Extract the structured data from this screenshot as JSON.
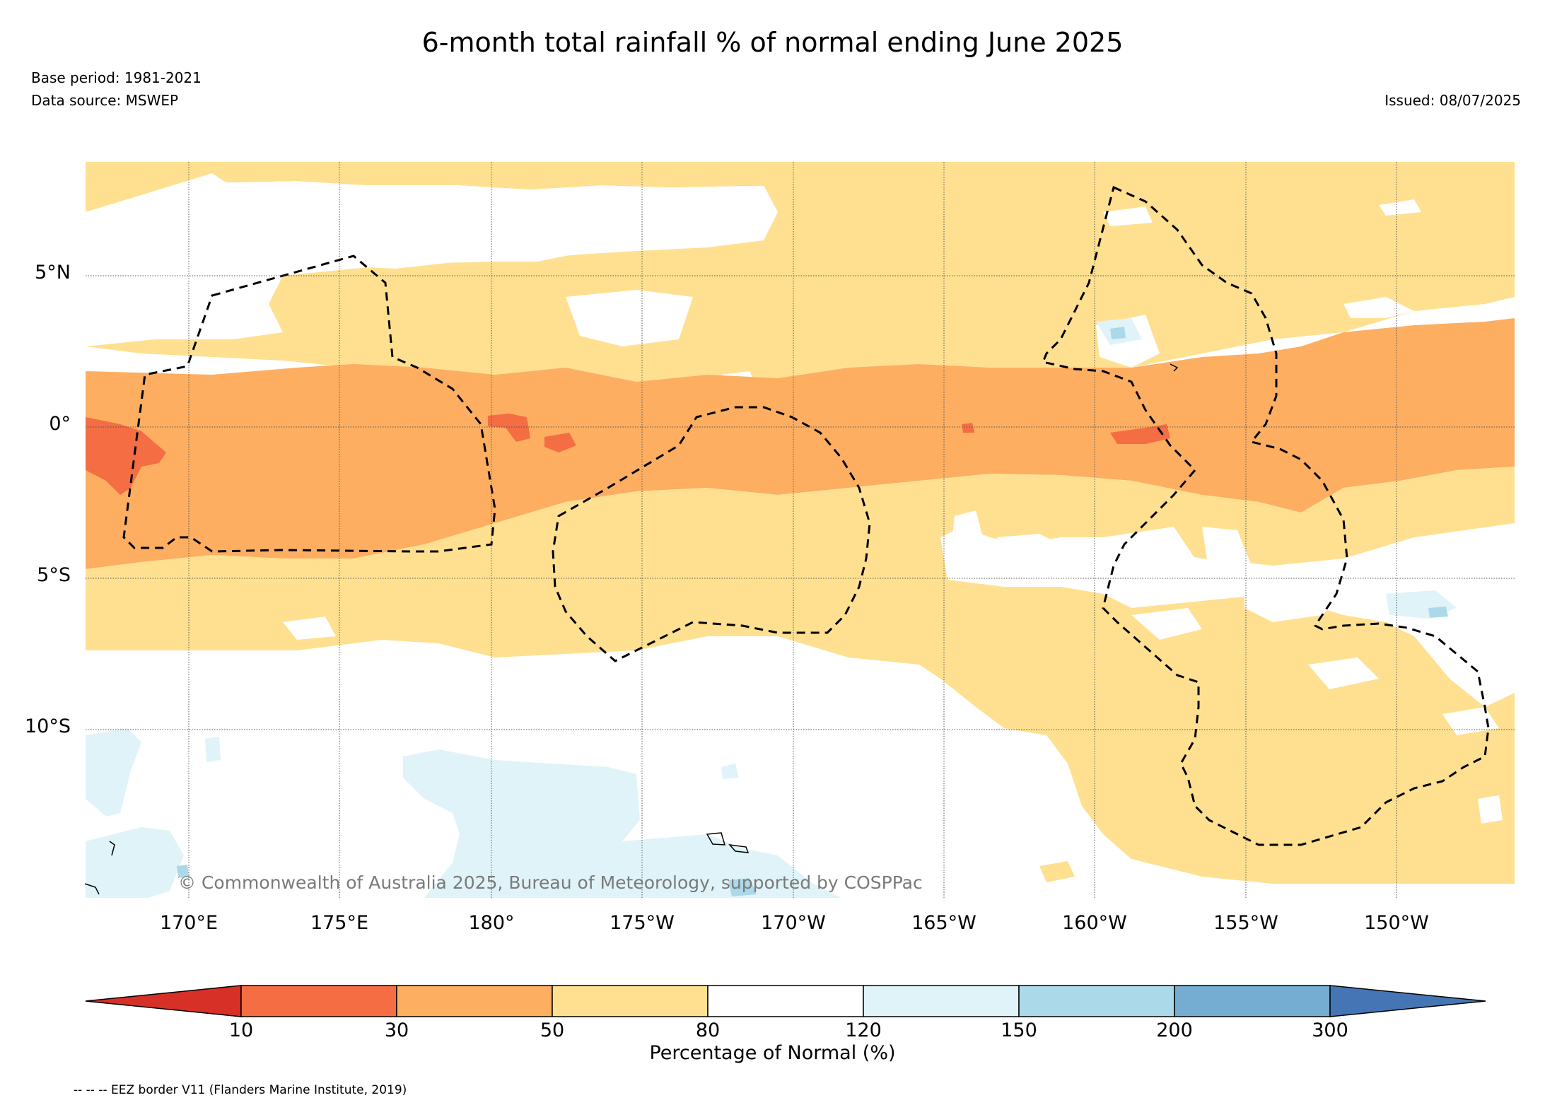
{
  "header": {
    "title": "6-month total rainfall % of normal ending June 2025",
    "base_period": "Base period: 1981-2021",
    "data_source": "Data source: MSWEP",
    "issued": "Issued: 08/07/2025"
  },
  "map": {
    "lat_labels": [
      "5°N",
      "0°",
      "5°S",
      "10°S"
    ],
    "lon_labels": [
      "170°E",
      "175°E",
      "180°",
      "175°W",
      "170°W",
      "165°W",
      "160°W",
      "155°W",
      "150°W"
    ],
    "copyright": "© Commonwealth of Australia 2025, Bureau of Meteorology, supported by COSPPac",
    "colors": {
      "below_10": "#d73027",
      "10_30": "#f46d43",
      "30_50": "#fdae61",
      "50_80": "#fee090",
      "80_120": "#ffffff",
      "120_150": "#e0f3f8",
      "150_200": "#abd9e9",
      "200_300": "#74add1",
      "above_300": "#4575b4"
    }
  },
  "colorbar": {
    "ticks": [
      "10",
      "30",
      "50",
      "80",
      "120",
      "150",
      "200",
      "300"
    ],
    "label": "Percentage of Normal (%)"
  },
  "legend": {
    "eez": "-- -- -- EEZ border V11 (Flanders Marine Institute, 2019)"
  }
}
